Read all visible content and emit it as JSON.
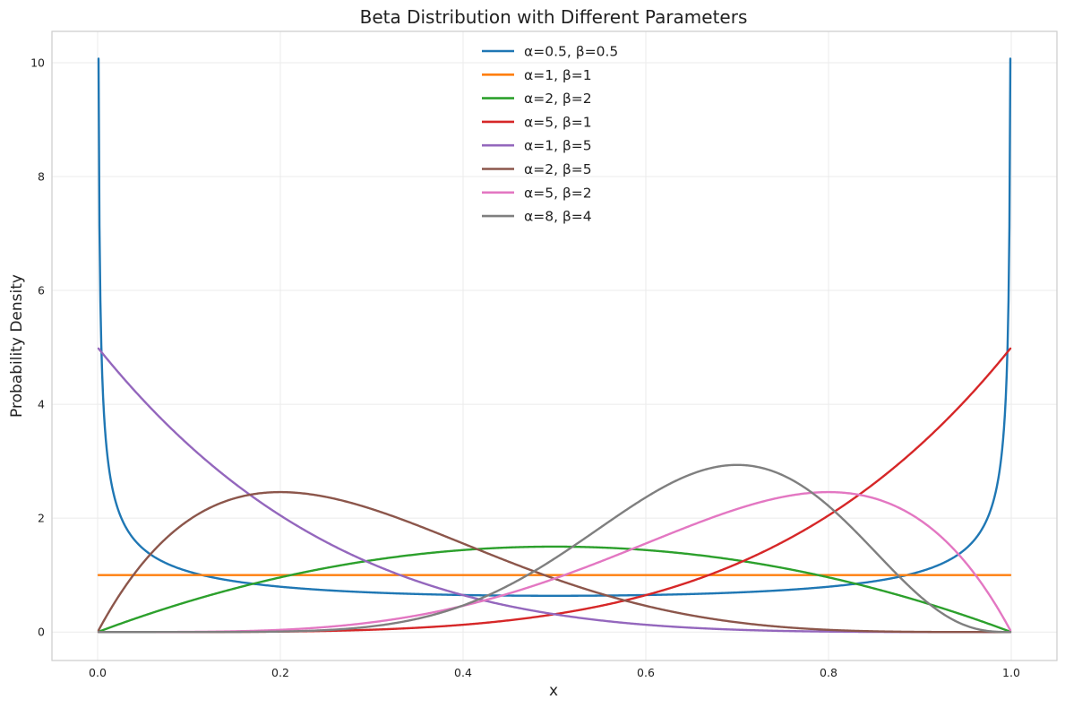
{
  "chart_data": {
    "type": "line",
    "title": "Beta Distribution with Different Parameters",
    "xlabel": "x",
    "ylabel": "Probability Density",
    "xlim": [
      -0.05,
      1.05
    ],
    "ylim": [
      -0.5,
      10.55
    ],
    "xticks": [
      0.0,
      0.2,
      0.4,
      0.6,
      0.8,
      1.0
    ],
    "xtick_labels": [
      "0.0",
      "0.2",
      "0.4",
      "0.6",
      "0.8",
      "1.0"
    ],
    "yticks": [
      0,
      2,
      4,
      6,
      8,
      10
    ],
    "ytick_labels": [
      "0",
      "2",
      "4",
      "6",
      "8",
      "10"
    ],
    "grid": true,
    "legend_position": "upper center",
    "x_domain": [
      0.001,
      0.999
    ],
    "series": [
      {
        "name": "α=0.5, β=0.5",
        "alpha": 0.5,
        "beta": 0.5,
        "color": "#1f77b4"
      },
      {
        "name": "α=1, β=1",
        "alpha": 1,
        "beta": 1,
        "color": "#ff7f0e"
      },
      {
        "name": "α=2, β=2",
        "alpha": 2,
        "beta": 2,
        "color": "#2ca02c"
      },
      {
        "name": "α=5, β=1",
        "alpha": 5,
        "beta": 1,
        "color": "#d62728"
      },
      {
        "name": "α=1, β=5",
        "alpha": 1,
        "beta": 5,
        "color": "#9467bd"
      },
      {
        "name": "α=2, β=5",
        "alpha": 2,
        "beta": 5,
        "color": "#8c564b"
      },
      {
        "name": "α=5, β=2",
        "alpha": 5,
        "beta": 2,
        "color": "#e377c2"
      },
      {
        "name": "α=8, β=4",
        "alpha": 8,
        "beta": 4,
        "color": "#7f7f7f"
      }
    ]
  }
}
